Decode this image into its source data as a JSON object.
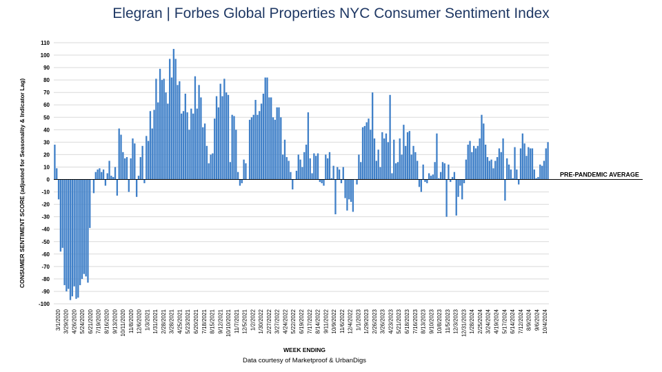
{
  "title": {
    "brand": "Elegran | Forbes Global Properties",
    "rest": "NYC Consumer Sentiment Index"
  },
  "chart_data": {
    "type": "bar",
    "title": "Elegran | Forbes Global Properties NYC Consumer Sentiment Index",
    "xlabel": "WEEK ENDING",
    "ylabel": "CONSUMER SENTIMENT SCORE (adjusted for Seasonality & Indicator Lag)",
    "ylim": [
      -100,
      110
    ],
    "yticks": [
      110,
      100,
      90,
      80,
      70,
      60,
      50,
      40,
      30,
      20,
      10,
      0,
      -10,
      -20,
      -30,
      -40,
      -50,
      -60,
      -70,
      -80,
      -90,
      -100
    ],
    "xtick_labels": [
      "3/1/2020",
      "3/29/2020",
      "4/26/2020",
      "5/24/2020",
      "6/21/2020",
      "7/19/2020",
      "8/16/2020",
      "9/13/2020",
      "10/11/2020",
      "11/8/2020",
      "12/6/2020",
      "1/3/2021",
      "1/31/2021",
      "2/28/2021",
      "3/28/2021",
      "4/25/2021",
      "5/23/2021",
      "6/20/2021",
      "7/18/2021",
      "8/15/2021",
      "9/12/2021",
      "10/10/2021",
      "11/7/2021",
      "12/5/2021",
      "1/2/2022",
      "1/30/2022",
      "2/27/2022",
      "3/27/2022",
      "4/24/2022",
      "5/22/2022",
      "6/19/2022",
      "7/17/2022",
      "8/14/2022",
      "9/11/2022",
      "10/9/2022",
      "11/6/2022",
      "12/4/2022",
      "1/1/2023",
      "1/29/2023",
      "2/26/2023",
      "3/26/2023",
      "4/23/2023",
      "5/21/2023",
      "6/18/2023",
      "7/16/2023",
      "8/13/2023",
      "9/10/2023",
      "10/8/2023",
      "11/5/2023",
      "12/3/2023",
      "12/31/2023",
      "1/28/2024",
      "2/25/2024",
      "3/24/2024",
      "4/19/2024",
      "5/17/2024",
      "6/14/2024",
      "7/12/2024",
      "8/9/2024",
      "9/6/2024",
      "10/4/2024"
    ],
    "reference_line": {
      "label": "PRE-PANDEMIC AVERAGE",
      "value": 0
    },
    "bar_color": "#4080c8",
    "grid": true,
    "values": [
      28,
      9,
      -16,
      -58,
      -55,
      -85,
      -90,
      -88,
      -97,
      -94,
      -86,
      -96,
      -95,
      -85,
      -80,
      -76,
      -78,
      -83,
      -39,
      0,
      -11,
      6,
      8,
      9,
      6,
      8,
      -5,
      5,
      15,
      3,
      2,
      10,
      -13,
      41,
      36,
      22,
      17,
      18,
      -10,
      17,
      33,
      29,
      -14,
      3,
      18,
      27,
      -3,
      35,
      31,
      55,
      41,
      56,
      81,
      62,
      89,
      80,
      81,
      70,
      61,
      97,
      82,
      105,
      97,
      76,
      79,
      53,
      55,
      69,
      54,
      40,
      57,
      53,
      83,
      57,
      76,
      66,
      42,
      45,
      27,
      13,
      20,
      21,
      49,
      67,
      58,
      77,
      67,
      81,
      70,
      68,
      14,
      52,
      51,
      40,
      6,
      -5,
      -3,
      16,
      13,
      0,
      48,
      50,
      52,
      64,
      52,
      55,
      61,
      69,
      82,
      82,
      66,
      66,
      50,
      48,
      58,
      58,
      50,
      20,
      32,
      18,
      15,
      6,
      -8,
      0,
      7,
      20,
      16,
      10,
      22,
      28,
      54,
      17,
      5,
      21,
      19,
      21,
      -2,
      -3,
      -5,
      20,
      17,
      22,
      1,
      11,
      -28,
      10,
      8,
      -3,
      10,
      -15,
      -25,
      -16,
      -18,
      -26,
      0,
      -4,
      20,
      14,
      42,
      43,
      46,
      49,
      40,
      70,
      33,
      15,
      24,
      10,
      38,
      33,
      37,
      30,
      68,
      5,
      32,
      13,
      14,
      33,
      20,
      44,
      27,
      38,
      39,
      20,
      27,
      22,
      15,
      -6,
      -10,
      12,
      -2,
      -3,
      5,
      3,
      4,
      14,
      37,
      1,
      6,
      14,
      13,
      -30,
      12,
      -2,
      2,
      6,
      -29,
      -14,
      -5,
      -16,
      -3,
      16,
      28,
      31,
      22,
      27,
      25,
      27,
      33,
      52,
      45,
      28,
      18,
      15,
      16,
      9,
      15,
      18,
      25,
      22,
      33,
      -17,
      17,
      12,
      8,
      1,
      26,
      8,
      -4,
      25,
      37,
      29,
      19,
      26,
      25,
      25,
      8,
      1,
      2,
      12,
      11,
      15,
      25,
      30
    ]
  }
}
